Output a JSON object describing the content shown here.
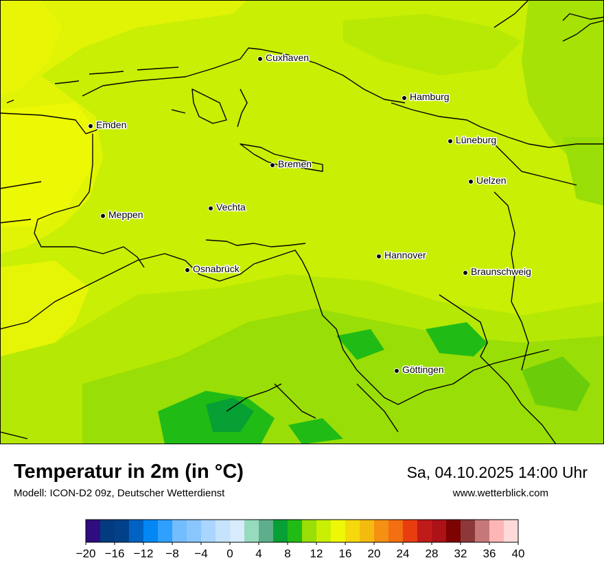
{
  "title": "Temperatur in 2m (in °C)",
  "subtitle": "Modell: ICON-D2 09z, Deutscher Wetterdienst",
  "datetime": "Sa, 04.10.2025 14:00 Uhr",
  "website": "www.wetterblick.com",
  "cities": [
    {
      "name": "Cuxhaven"
    },
    {
      "name": "Hamburg"
    },
    {
      "name": "Emden"
    },
    {
      "name": "Lüneburg"
    },
    {
      "name": "Bremen"
    },
    {
      "name": "Uelzen"
    },
    {
      "name": "Vechta"
    },
    {
      "name": "Meppen"
    },
    {
      "name": "Hannover"
    },
    {
      "name": "Osnabrück"
    },
    {
      "name": "Braunschweig"
    },
    {
      "name": "Göttingen"
    }
  ],
  "legend": {
    "ticks": [
      "−20",
      "−16",
      "−12",
      "−8",
      "−4",
      "0",
      "4",
      "8",
      "12",
      "16",
      "20",
      "24",
      "28",
      "32",
      "36",
      "40"
    ],
    "colors": [
      "#2f0c7f",
      "#023b80",
      "#02418a",
      "#0063c4",
      "#0387f4",
      "#2fa0fd",
      "#73bcfe",
      "#89c6fe",
      "#a9d5fe",
      "#c6e3fd",
      "#d7ebfd",
      "#96dbbd",
      "#5fae8b",
      "#06a034",
      "#21bb16",
      "#99de06",
      "#c8ef04",
      "#eef806",
      "#f5d80d",
      "#f4bb0e",
      "#f49012",
      "#f46e12",
      "#e73d0f",
      "#c01b1b",
      "#ad1217",
      "#7d0202",
      "#8d3838",
      "#c67878",
      "#fdb6b6",
      "#fed9d9"
    ]
  }
}
